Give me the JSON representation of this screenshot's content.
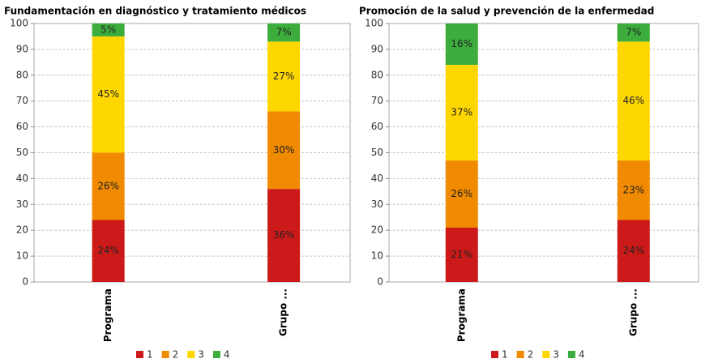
{
  "chart_data": [
    {
      "type": "bar",
      "stacked": true,
      "title": "Fundamentación en diagnóstico y tratamiento médicos",
      "categories": [
        "Programa",
        "Grupo ..."
      ],
      "series": [
        {
          "name": "1",
          "color": "#cc1a1a",
          "values": [
            24,
            36
          ],
          "value_labels": [
            "24%",
            "36%"
          ]
        },
        {
          "name": "2",
          "color": "#f08a00",
          "values": [
            26,
            30
          ],
          "value_labels": [
            "26%",
            "30%"
          ]
        },
        {
          "name": "3",
          "color": "#ffd700",
          "values": [
            45,
            27
          ],
          "value_labels": [
            "45%",
            "27%"
          ]
        },
        {
          "name": "4",
          "color": "#3cad3c",
          "values": [
            5,
            7
          ],
          "value_labels": [
            "5%",
            "7%"
          ]
        }
      ],
      "ylim": [
        0,
        100
      ],
      "yticks": [
        0,
        10,
        20,
        30,
        40,
        50,
        60,
        70,
        80,
        90,
        100
      ],
      "grid": true
    },
    {
      "type": "bar",
      "stacked": true,
      "title": "Promoción de la salud y prevención de la enfermedad",
      "categories": [
        "Programa",
        "Grupo ..."
      ],
      "series": [
        {
          "name": "1",
          "color": "#cc1a1a",
          "values": [
            21,
            24
          ],
          "value_labels": [
            "21%",
            "24%"
          ]
        },
        {
          "name": "2",
          "color": "#f08a00",
          "values": [
            26,
            23
          ],
          "value_labels": [
            "26%",
            "23%"
          ]
        },
        {
          "name": "3",
          "color": "#ffd700",
          "values": [
            37,
            46
          ],
          "value_labels": [
            "37%",
            "46%"
          ]
        },
        {
          "name": "4",
          "color": "#3cad3c",
          "values": [
            16,
            7
          ],
          "value_labels": [
            "16%",
            "7%"
          ]
        }
      ],
      "ylim": [
        0,
        100
      ],
      "yticks": [
        0,
        10,
        20,
        30,
        40,
        50,
        60,
        70,
        80,
        90,
        100
      ],
      "grid": true
    }
  ]
}
